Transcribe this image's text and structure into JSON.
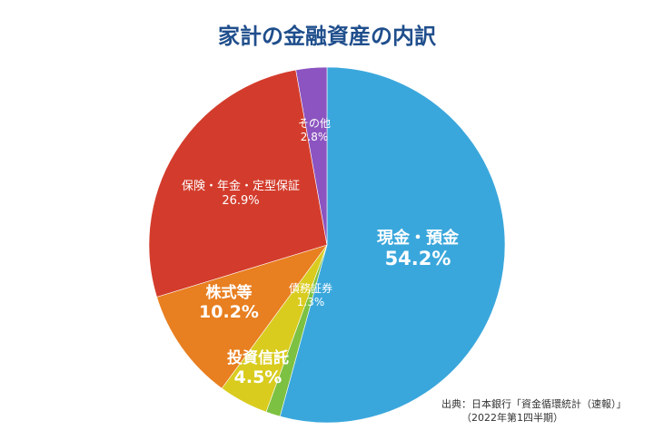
{
  "chart_data": {
    "type": "pie",
    "title": "家計の金融資産の内訳",
    "unit": "%",
    "slices": [
      {
        "label": "現金・預金",
        "value": 54.2,
        "value_label": "54.2%",
        "color": "#3aa7dc",
        "emphasis": "major"
      },
      {
        "label": "債務証券",
        "value": 1.3,
        "value_label": "1.3%",
        "color": "#7dc142",
        "emphasis": "minor"
      },
      {
        "label": "投資信託",
        "value": 4.5,
        "value_label": "4.5%",
        "color": "#d9cc1f",
        "emphasis": "major"
      },
      {
        "label": "株式等",
        "value": 10.2,
        "value_label": "10.2%",
        "color": "#e87f20",
        "emphasis": "major"
      },
      {
        "label": "保険・年金・定型保証",
        "value": 26.9,
        "value_label": "26.9%",
        "color": "#d33c2c",
        "emphasis": "minor"
      },
      {
        "label": "その他",
        "value": 2.8,
        "value_label": "2.8%",
        "color": "#8c54c0",
        "emphasis": "minor"
      }
    ],
    "start_angle": "12 o'clock",
    "direction": "clockwise",
    "legend": "none"
  },
  "source": {
    "line1": "出典：日本銀行「資金循環統計（速報）」",
    "line2": "（2022年第1四半期）"
  }
}
